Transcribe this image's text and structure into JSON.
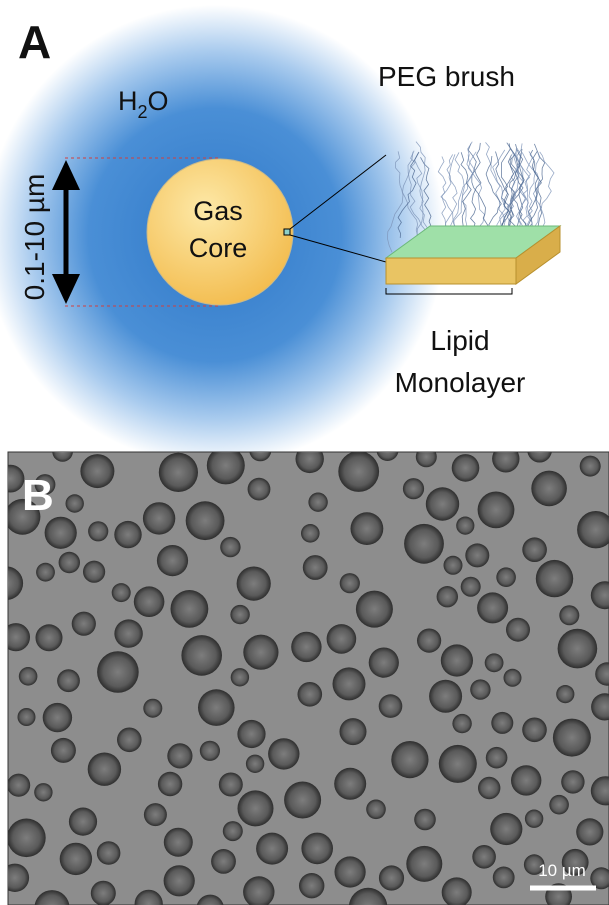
{
  "panel_a": {
    "letter": "A",
    "water": [
      "H",
      "2",
      "O"
    ],
    "size_range": "0.1-10 µm",
    "core": [
      "Gas",
      "Core"
    ],
    "brush": "PEG brush",
    "monolayer": [
      "Lipid",
      "Monolayer"
    ]
  },
  "panel_b": {
    "letter": "B",
    "scale_bar": "10 µm"
  }
}
